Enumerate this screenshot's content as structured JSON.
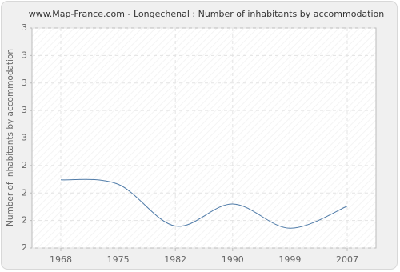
{
  "chart_data": {
    "type": "line",
    "title": "www.Map-France.com - Longechenal : Number of inhabitants by accommodation",
    "y_label": "Number of inhabitants by accommodation",
    "categories": [
      "1968",
      "1975",
      "1982",
      "1990",
      "1999",
      "2007"
    ],
    "series": [
      {
        "name": "Number of inhabitants by accommodation",
        "color": "#4f7ba8",
        "values": [
          2.31,
          2.29,
          2.1,
          2.2,
          2.09,
          2.19
        ]
      }
    ],
    "ylim": [
      2,
      3
    ],
    "yticks": [
      {
        "value": 2,
        "label": "2"
      },
      {
        "value": 2.125,
        "label": "2"
      },
      {
        "value": 2.25,
        "label": "2"
      },
      {
        "value": 2.375,
        "label": "2"
      },
      {
        "value": 2.5,
        "label": "3"
      },
      {
        "value": 2.625,
        "label": "3"
      },
      {
        "value": 2.75,
        "label": "3"
      },
      {
        "value": 2.875,
        "label": "3"
      },
      {
        "value": 3,
        "label": "3"
      }
    ],
    "grid": true
  }
}
